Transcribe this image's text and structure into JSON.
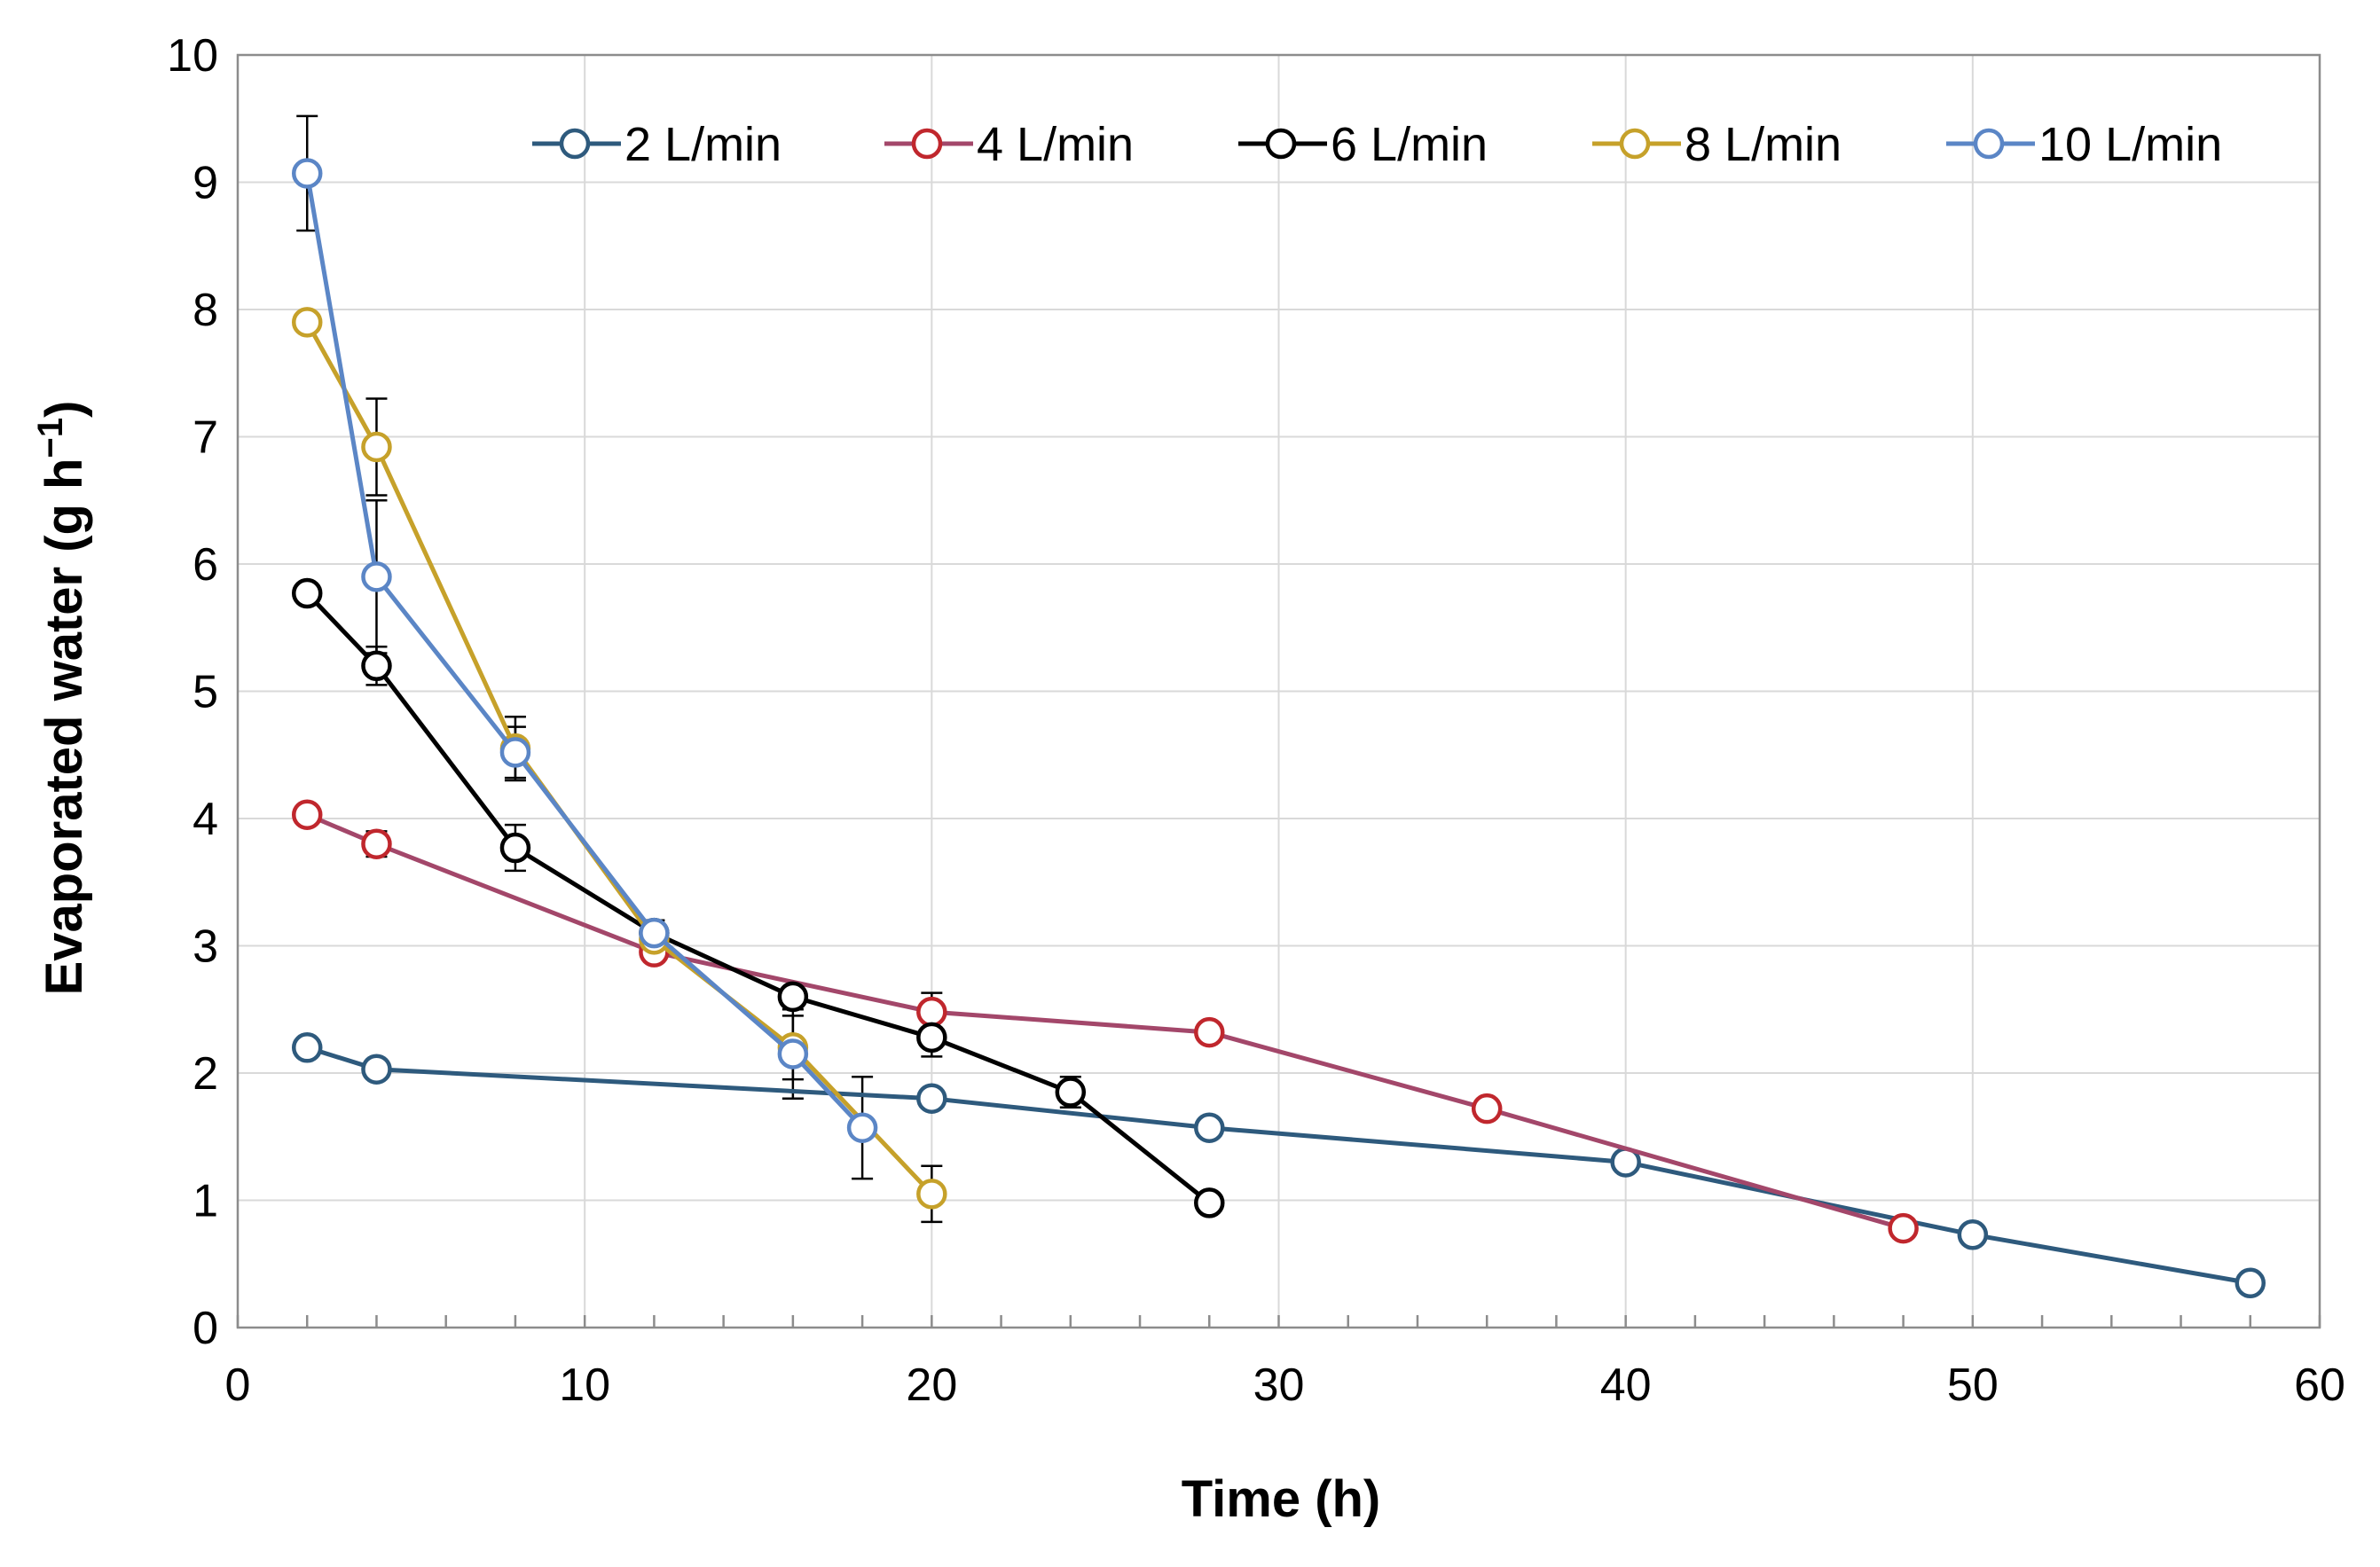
{
  "chart_data": {
    "type": "line",
    "title": "",
    "xlabel": "Time (h)",
    "ylabel": "Evaporated water (g h⁻¹)",
    "ylabel_parts": {
      "main": "Evaporated water (g h",
      "sup": "−1",
      "end": ")"
    },
    "xlim": [
      0,
      60
    ],
    "ylim": [
      0,
      10
    ],
    "xticks": [
      0,
      10,
      20,
      30,
      40,
      50,
      60
    ],
    "yticks": [
      0,
      1,
      2,
      3,
      4,
      5,
      6,
      7,
      8,
      9,
      10
    ],
    "x_minor_step": 2,
    "grid": true,
    "legend_position": "top",
    "series": [
      {
        "name": "2 L/min",
        "color": "#2e5a7d",
        "x": [
          2,
          4,
          20,
          28,
          40,
          50,
          58
        ],
        "y": [
          2.2,
          2.03,
          1.8,
          1.57,
          1.3,
          0.73,
          0.35
        ],
        "err": [
          0,
          0,
          0,
          0,
          0,
          0,
          0
        ]
      },
      {
        "name": "4 L/min",
        "color": "#a3476a",
        "marker_color": "#c0272d",
        "x": [
          2,
          4,
          12,
          20,
          28,
          36,
          48
        ],
        "y": [
          4.03,
          3.8,
          2.95,
          2.48,
          2.32,
          1.72,
          0.78
        ],
        "err": [
          0,
          0.1,
          0,
          0.15,
          0,
          0,
          0
        ]
      },
      {
        "name": "6 L/min",
        "color": "#000000",
        "x": [
          2,
          4,
          8,
          12,
          16,
          20,
          24,
          28
        ],
        "y": [
          5.77,
          5.2,
          3.77,
          3.1,
          2.6,
          2.28,
          1.85,
          0.98
        ],
        "err": [
          0,
          0.15,
          0.18,
          0,
          0.05,
          0.15,
          0.12,
          0
        ]
      },
      {
        "name": "8 L/min",
        "color": "#c6a12a",
        "x": [
          2,
          4,
          8,
          12,
          16,
          20
        ],
        "y": [
          7.9,
          6.92,
          4.55,
          3.05,
          2.2,
          1.05
        ],
        "err": [
          0,
          0.38,
          0.25,
          0,
          0.25,
          0.22
        ]
      },
      {
        "name": "10 L/min",
        "color": "#5b86c6",
        "x": [
          2,
          4,
          8,
          12,
          16,
          18
        ],
        "y": [
          9.07,
          5.9,
          4.52,
          3.1,
          2.15,
          1.57
        ],
        "err": [
          0.45,
          0.6,
          0.2,
          0.1,
          0.35,
          0.4
        ]
      }
    ]
  }
}
